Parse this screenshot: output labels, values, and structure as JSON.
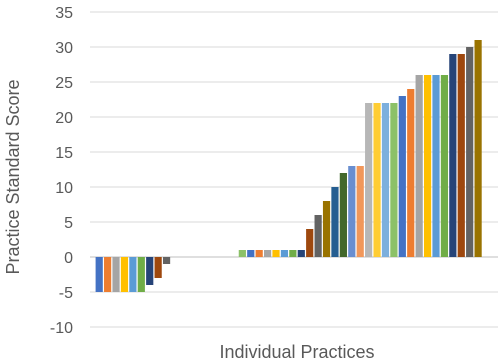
{
  "chart_data": {
    "type": "bar",
    "title": "",
    "xlabel": "Individual Practices",
    "ylabel": "Practice Standard Score",
    "ylim": [
      -10,
      35
    ],
    "yticks": [
      -10,
      -5,
      0,
      5,
      10,
      15,
      20,
      25,
      30,
      35
    ],
    "gridlines": true,
    "legend": "none",
    "values": [
      -5,
      -5,
      -5,
      -5,
      -5,
      -5,
      -4,
      -3,
      -1,
      0,
      0,
      0,
      0,
      0,
      0,
      0,
      0,
      1,
      1,
      1,
      1,
      1,
      1,
      1,
      1,
      4,
      6,
      8,
      10,
      12,
      13,
      13,
      22,
      22,
      22,
      22,
      23,
      24,
      26,
      26,
      26,
      26,
      29,
      29,
      30,
      31
    ],
    "palette": [
      "#4472C4",
      "#ED7D31",
      "#A5A5A5",
      "#FFC000",
      "#5B9BD5",
      "#70AD47",
      "#264478",
      "#9E480E",
      "#636363",
      "#997300",
      "#255E91",
      "#43682B",
      "#698ED0",
      "#F1975A",
      "#B7B7B7",
      "#FFCD33",
      "#7CAFDD",
      "#8CC168"
    ]
  }
}
